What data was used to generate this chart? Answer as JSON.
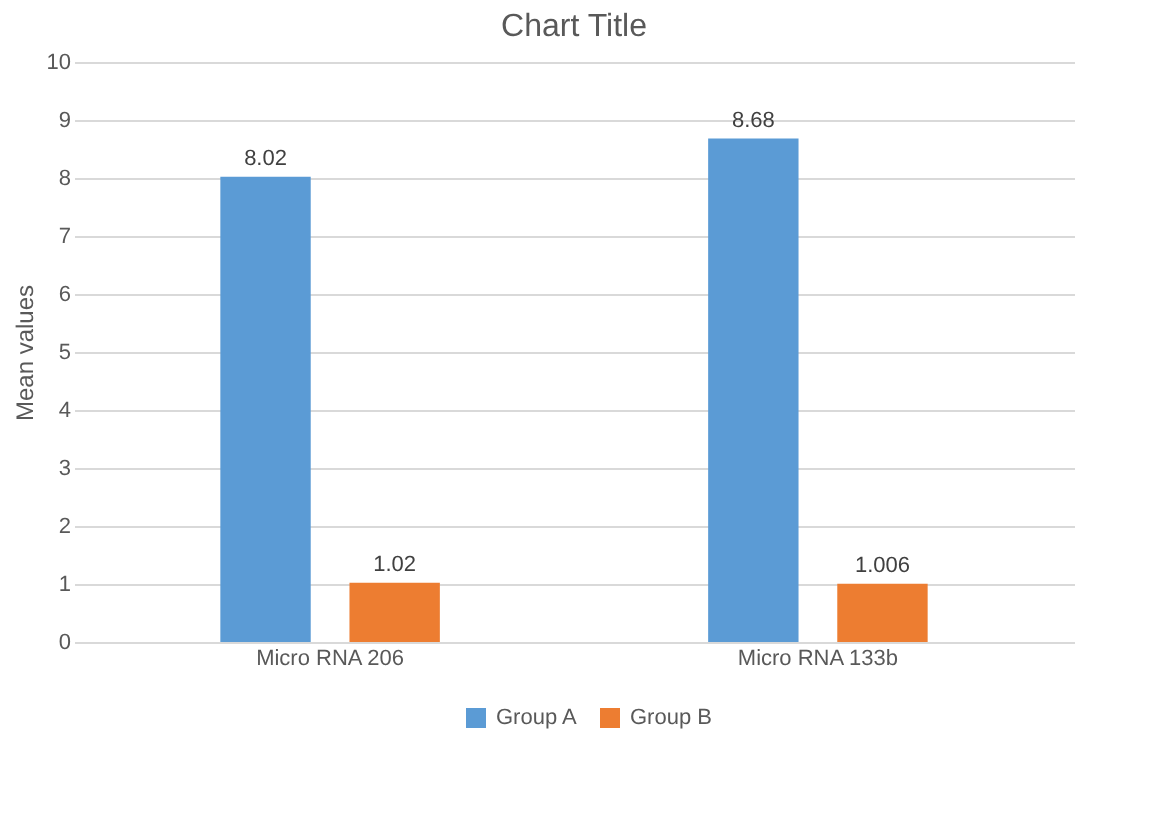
{
  "chart_data": {
    "type": "bar",
    "title": "Chart Title",
    "ylabel": "Mean values",
    "categories": [
      "Micro RNA 206",
      "Micro RNA 133b"
    ],
    "series": [
      {
        "name": "Group A",
        "color": "#5b9bd5",
        "values": [
          8.02,
          8.68
        ]
      },
      {
        "name": "Group B",
        "color": "#ed7d31",
        "values": [
          1.02,
          1.006
        ]
      }
    ],
    "ylim": [
      0,
      10
    ],
    "yticks": [
      0,
      1,
      2,
      3,
      4,
      5,
      6,
      7,
      8,
      9,
      10
    ],
    "grid": "y",
    "legend": "bottom",
    "data_labels": true
  }
}
